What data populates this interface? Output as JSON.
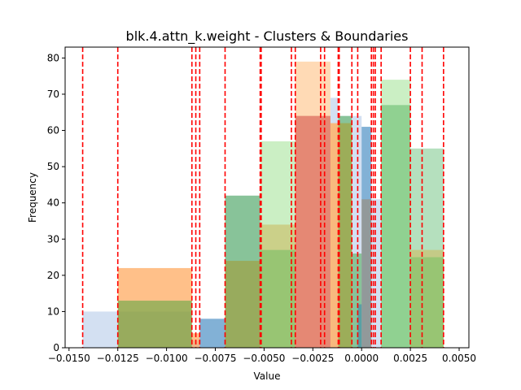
{
  "chart_data": {
    "type": "bar",
    "title": "blk.4.attn_k.weight - Clusters & Boundaries",
    "xlabel": "Value",
    "ylabel": "Frequency",
    "xlim": [
      -0.0152,
      0.0055
    ],
    "ylim": [
      0,
      83
    ],
    "xticks": [
      -0.015,
      -0.0125,
      -0.01,
      -0.0075,
      -0.005,
      -0.0025,
      0.0,
      0.0025,
      0.005
    ],
    "xtick_labels": [
      "−0.0150",
      "−0.0125",
      "−0.0100",
      "−0.0075",
      "−0.0050",
      "−0.0025",
      "0.0000",
      "0.0025",
      "0.0050"
    ],
    "yticks": [
      0,
      10,
      20,
      30,
      40,
      50,
      60,
      70,
      80
    ],
    "ytick_labels": [
      "0",
      "10",
      "20",
      "30",
      "40",
      "50",
      "60",
      "70",
      "80"
    ],
    "grid": false,
    "series": [
      {
        "color": "#aec7e8",
        "alpha": 0.55,
        "bars": [
          {
            "x0": -0.0143,
            "x1": -0.0125,
            "value": 10
          },
          {
            "x0": -0.0125,
            "x1": -0.0087,
            "value": 10
          },
          {
            "x0": -0.0087,
            "x1": -0.0083,
            "value": 2
          },
          {
            "x0": -0.0083,
            "x1": -0.007,
            "value": 8
          },
          {
            "x0": -0.007,
            "x1": -0.0052,
            "value": 42
          },
          {
            "x0": -0.0052,
            "x1": -0.0034,
            "value": 27
          },
          {
            "x0": -0.0034,
            "x1": -0.0016,
            "value": 64
          },
          {
            "x0": -0.0016,
            "x1": -0.0012,
            "value": 69
          },
          {
            "x0": -0.0012,
            "x1": 0.0,
            "value": 64
          },
          {
            "x0": 0.0,
            "x1": 0.0005,
            "value": 61
          },
          {
            "x0": 0.0005,
            "x1": 0.001,
            "value": 41
          },
          {
            "x0": 0.001,
            "x1": 0.0025,
            "value": 67
          },
          {
            "x0": 0.0025,
            "x1": 0.0042,
            "value": 55
          }
        ]
      },
      {
        "color": "#ff9e4a",
        "alpha": 0.65,
        "bars": [
          {
            "x0": -0.0125,
            "x1": -0.0087,
            "value": 22
          },
          {
            "x0": -0.0087,
            "x1": -0.0083,
            "value": 4
          },
          {
            "x0": -0.007,
            "x1": -0.0052,
            "value": 24
          },
          {
            "x0": -0.0052,
            "x1": -0.0034,
            "value": 34
          },
          {
            "x0": -0.0034,
            "x1": -0.0016,
            "value": 64
          },
          {
            "x0": -0.0016,
            "x1": -0.0005,
            "value": 62
          },
          {
            "x0": 0.0,
            "x1": 0.0005,
            "value": 41
          },
          {
            "x0": 0.0025,
            "x1": 0.0042,
            "value": 27
          }
        ]
      },
      {
        "color": "#ffbb78",
        "alpha": 0.55,
        "bars": [
          {
            "x0": -0.0034,
            "x1": -0.0016,
            "value": 79
          },
          {
            "x0": -0.0016,
            "x1": -0.0005,
            "value": 62
          }
        ]
      },
      {
        "color": "#2ca02c",
        "alpha": 0.45,
        "bars": [
          {
            "x0": -0.0125,
            "x1": -0.0087,
            "value": 13
          },
          {
            "x0": -0.007,
            "x1": -0.0052,
            "value": 42
          },
          {
            "x0": -0.0052,
            "x1": -0.0034,
            "value": 27
          },
          {
            "x0": -0.0005,
            "x1": 0.0,
            "value": 26
          },
          {
            "x0": -0.0012,
            "x1": -0.0005,
            "value": 64
          },
          {
            "x0": 0.001,
            "x1": 0.0025,
            "value": 67
          },
          {
            "x0": 0.0025,
            "x1": 0.0042,
            "value": 25
          }
        ]
      },
      {
        "color": "#98df8a",
        "alpha": 0.5,
        "bars": [
          {
            "x0": -0.0052,
            "x1": -0.0034,
            "value": 57
          },
          {
            "x0": 0.001,
            "x1": 0.0025,
            "value": 74
          },
          {
            "x0": 0.0025,
            "x1": 0.0042,
            "value": 55
          }
        ]
      },
      {
        "color": "#d6616b",
        "alpha": 0.55,
        "bars": [
          {
            "x0": -0.0034,
            "x1": -0.0016,
            "value": 64
          }
        ]
      },
      {
        "color": "#1f77b4",
        "alpha": 0.45,
        "bars": [
          {
            "x0": -0.0083,
            "x1": -0.007,
            "value": 8
          },
          {
            "x0": 0.0,
            "x1": 0.0005,
            "value": 61
          },
          {
            "x0": -0.0002,
            "x1": 0.0,
            "value": 12
          }
        ]
      }
    ],
    "boundaries": [
      -0.0143,
      -0.0125,
      -0.0087,
      -0.0085,
      -0.0083,
      -0.007,
      -0.0052,
      -0.00515,
      -0.0036,
      -0.0034,
      -0.0021,
      -0.0019,
      -0.0012,
      -0.00115,
      -0.0005,
      -0.0002,
      0.0005,
      0.0006,
      0.0007,
      0.001,
      0.0025,
      0.0031,
      0.0042
    ],
    "boundary_color": "#ff0000"
  }
}
